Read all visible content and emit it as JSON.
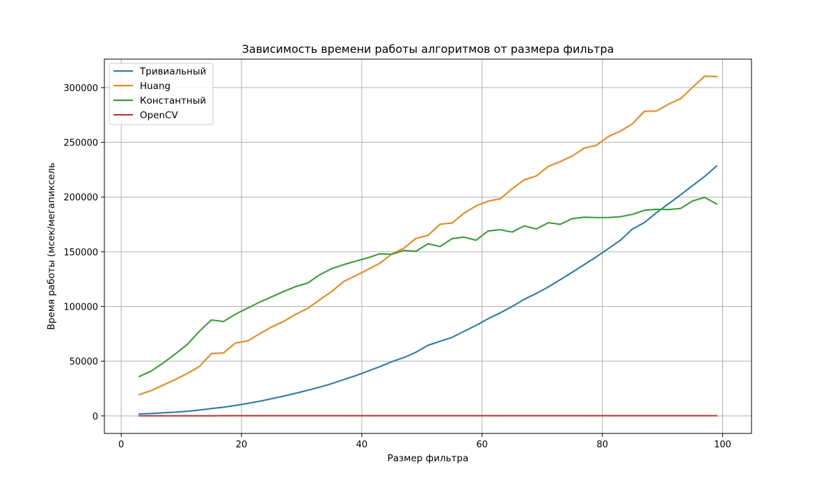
{
  "chart_data": {
    "type": "line",
    "title": "Зависимость времени работы алгоритмов от размера фильтра",
    "xlabel": "Размер фильтра",
    "ylabel": "Время работы (мсек/мегапиксель",
    "xlim": [
      -2.8,
      104.8
    ],
    "ylim": [
      -16000,
      326000
    ],
    "xticks": [
      0,
      20,
      40,
      60,
      80,
      100
    ],
    "yticks": [
      0,
      50000,
      100000,
      150000,
      200000,
      250000,
      300000
    ],
    "xtick_labels": [
      "0",
      "20",
      "40",
      "60",
      "80",
      "100"
    ],
    "ytick_labels": [
      "0",
      "50000",
      "100000",
      "150000",
      "200000",
      "250000",
      "300000"
    ],
    "grid": true,
    "legend_position": "upper left",
    "x": [
      3,
      5,
      7,
      9,
      11,
      13,
      15,
      17,
      19,
      21,
      23,
      25,
      27,
      29,
      31,
      33,
      35,
      37,
      39,
      41,
      43,
      45,
      47,
      49,
      51,
      53,
      55,
      57,
      59,
      61,
      63,
      65,
      67,
      69,
      71,
      73,
      75,
      77,
      79,
      81,
      83,
      85,
      87,
      89,
      91,
      93,
      95,
      97,
      99
    ],
    "series": [
      {
        "name": "Тривиальный",
        "color": "#1f77b4",
        "values": [
          1800,
          2200,
          2800,
          3500,
          4300,
          5400,
          6700,
          8000,
          9600,
          11400,
          13400,
          15700,
          18100,
          20700,
          23400,
          26300,
          29500,
          33200,
          36800,
          40900,
          45000,
          49600,
          53300,
          58200,
          64500,
          68200,
          71700,
          77300,
          82700,
          88800,
          94100,
          100000,
          106500,
          111900,
          117800,
          124500,
          131300,
          138300,
          145400,
          152900,
          160500,
          170800,
          176700,
          185700,
          193800,
          202000,
          210400,
          218800,
          228400
        ]
      },
      {
        "name": "Huang",
        "color": "#ff7f0e",
        "values": [
          19500,
          23200,
          28300,
          33300,
          38900,
          45200,
          57100,
          57500,
          66700,
          68500,
          75100,
          81300,
          86400,
          92800,
          98300,
          106200,
          113800,
          122900,
          128200,
          133800,
          139600,
          148000,
          153300,
          162200,
          165000,
          175200,
          176300,
          185300,
          191900,
          196300,
          198400,
          207700,
          215700,
          219300,
          228000,
          232400,
          237600,
          244800,
          247300,
          255300,
          260300,
          267000,
          278400,
          278600,
          284900,
          289900,
          300300,
          310500,
          310200
        ]
      },
      {
        "name": "Константный",
        "color": "#2ca02c",
        "values": [
          36000,
          41000,
          48500,
          56700,
          65400,
          77400,
          87700,
          86300,
          93000,
          98500,
          103900,
          108800,
          113700,
          118200,
          121400,
          129000,
          134600,
          138300,
          141400,
          144500,
          148200,
          147700,
          151200,
          150400,
          157400,
          154800,
          162000,
          163400,
          160500,
          169000,
          170200,
          168000,
          173700,
          170800,
          176500,
          175100,
          180300,
          181600,
          181200,
          181300,
          182000,
          184200,
          187900,
          188800,
          188500,
          189600,
          196400,
          199700,
          193700
        ]
      },
      {
        "name": "OpenCV",
        "color": "#d62728",
        "values": [
          150,
          150,
          160,
          160,
          160,
          160,
          160,
          170,
          170,
          170,
          170,
          170,
          170,
          170,
          170,
          170,
          170,
          170,
          170,
          170,
          170,
          170,
          170,
          170,
          170,
          170,
          170,
          170,
          170,
          170,
          170,
          170,
          170,
          170,
          170,
          170,
          170,
          170,
          170,
          170,
          170,
          170,
          170,
          170,
          170,
          170,
          170,
          170,
          170
        ]
      }
    ]
  }
}
